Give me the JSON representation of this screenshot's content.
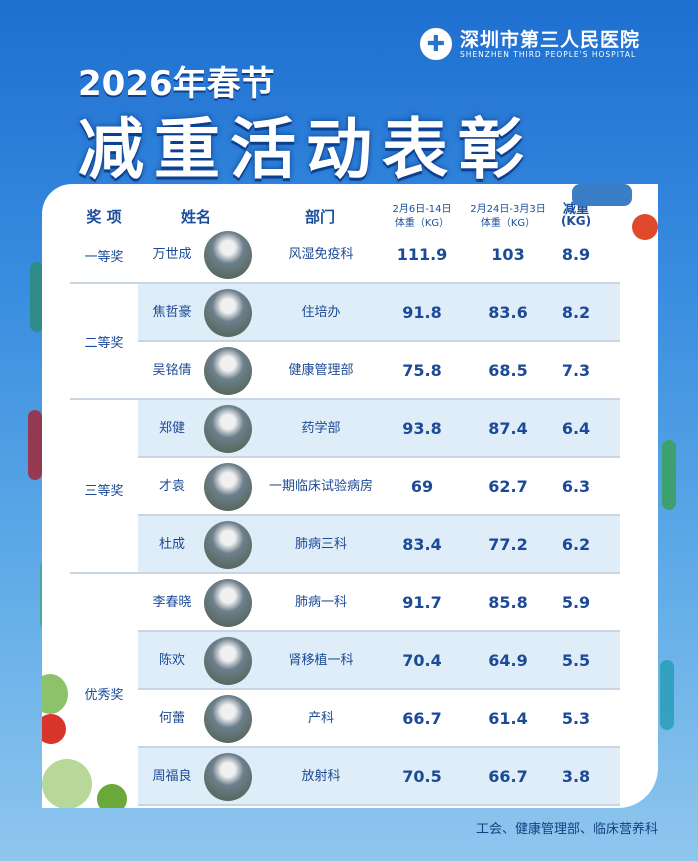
{
  "hospital": {
    "name_cn": "深圳市第三人民医院",
    "name_en": "SHENZHEN THIRD PEOPLE'S HOSPITAL"
  },
  "title": {
    "line1": "2026年春节",
    "line2": "减重活动表彰"
  },
  "table": {
    "headers": {
      "award": "奖 项",
      "name": "姓名",
      "dept": "部门",
      "w1_date": "2月6日-14日",
      "w1_unit": "体重（KG）",
      "w2_date": "2月24日-3月3日",
      "w2_unit": "体重（KG）",
      "loss": "减重",
      "loss_unit": "(KG)"
    },
    "awards": [
      {
        "label": "一等奖"
      },
      {
        "label": "二等奖"
      },
      {
        "label": "三等奖"
      },
      {
        "label": "优秀奖"
      }
    ],
    "rows": [
      {
        "name": "万世成",
        "dept": "风湿免疫科",
        "w1": "111.9",
        "w2": "103",
        "loss": "8.9"
      },
      {
        "name": "焦哲豪",
        "dept": "住培办",
        "w1": "91.8",
        "w2": "83.6",
        "loss": "8.2"
      },
      {
        "name": "吴铭倩",
        "dept": "健康管理部",
        "w1": "75.8",
        "w2": "68.5",
        "loss": "7.3"
      },
      {
        "name": "郑健",
        "dept": "药学部",
        "w1": "93.8",
        "w2": "87.4",
        "loss": "6.4"
      },
      {
        "name": "才袁",
        "dept": "一期临床试验病房",
        "w1": "69",
        "w2": "62.7",
        "loss": "6.3"
      },
      {
        "name": "杜成",
        "dept": "肺病三科",
        "w1": "83.4",
        "w2": "77.2",
        "loss": "6.2"
      },
      {
        "name": "李春晓",
        "dept": "肺病一科",
        "w1": "91.7",
        "w2": "85.8",
        "loss": "5.9"
      },
      {
        "name": "陈欢",
        "dept": "肾移植一科",
        "w1": "70.4",
        "w2": "64.9",
        "loss": "5.5"
      },
      {
        "name": "何蕾",
        "dept": "产科",
        "w1": "66.7",
        "w2": "61.4",
        "loss": "5.3"
      },
      {
        "name": "周福良",
        "dept": "放射科",
        "w1": "70.5",
        "w2": "66.7",
        "loss": "3.8"
      }
    ]
  },
  "footer": "工会、健康管理部、临床营养科",
  "colors": {
    "text": "#1c4a96",
    "row_alt": "#deedf8"
  }
}
